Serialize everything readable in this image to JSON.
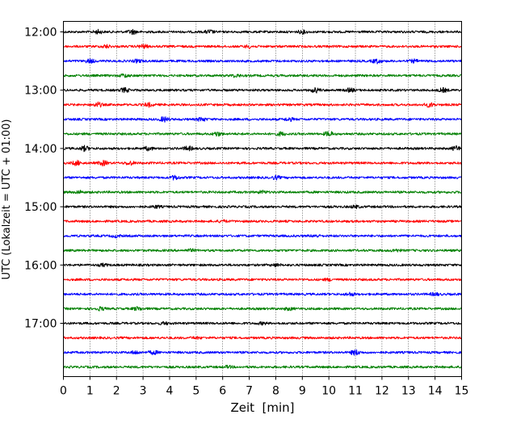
{
  "chart_data": {
    "type": "line",
    "xlabel": "Zeit  [min]",
    "ylabel": "UTC (Lokalzeit = UTC + 01:00)",
    "xlim": [
      0,
      15
    ],
    "x_ticks": [
      "0",
      "1",
      "2",
      "3",
      "4",
      "5",
      "6",
      "7",
      "8",
      "9",
      "10",
      "11",
      "12",
      "13",
      "14",
      "15"
    ],
    "y_ticks": [
      "12:00",
      "13:00",
      "14:00",
      "15:00",
      "16:00",
      "17:00"
    ],
    "grid": "vertical dotted at each minute",
    "trace_interval_minutes": 15,
    "traces": [
      {
        "start": "12:00",
        "color": "#000000",
        "events": [
          [
            1.3,
            2.0
          ],
          [
            2.6,
            2.6
          ],
          [
            5.5,
            2.0
          ],
          [
            9.0,
            1.8
          ]
        ]
      },
      {
        "start": "12:15",
        "color": "#ff0000",
        "events": [
          [
            1.6,
            1.8
          ],
          [
            3.0,
            2.2
          ],
          [
            7.0,
            1.6
          ]
        ]
      },
      {
        "start": "12:30",
        "color": "#0000ff",
        "events": [
          [
            1.0,
            2.2
          ],
          [
            2.8,
            1.8
          ],
          [
            11.8,
            2.4
          ],
          [
            13.2,
            1.6
          ]
        ]
      },
      {
        "start": "12:45",
        "color": "#008000",
        "events": [
          [
            2.3,
            1.8
          ],
          [
            6.5,
            1.6
          ]
        ]
      },
      {
        "start": "13:00",
        "color": "#000000",
        "events": [
          [
            2.3,
            2.5
          ],
          [
            9.5,
            2.6
          ],
          [
            10.8,
            2.0
          ],
          [
            14.3,
            2.2
          ]
        ]
      },
      {
        "start": "13:15",
        "color": "#ff0000",
        "events": [
          [
            1.3,
            2.6
          ],
          [
            3.2,
            2.2
          ],
          [
            13.8,
            2.4
          ]
        ]
      },
      {
        "start": "13:30",
        "color": "#0000ff",
        "events": [
          [
            3.8,
            2.8
          ],
          [
            5.2,
            2.2
          ],
          [
            8.5,
            1.8
          ]
        ]
      },
      {
        "start": "13:45",
        "color": "#008000",
        "events": [
          [
            5.8,
            2.4
          ],
          [
            8.2,
            2.0
          ],
          [
            10.0,
            2.8
          ]
        ]
      },
      {
        "start": "14:00",
        "color": "#000000",
        "events": [
          [
            0.8,
            2.8
          ],
          [
            3.2,
            2.0
          ],
          [
            4.7,
            2.4
          ],
          [
            14.8,
            2.6
          ]
        ]
      },
      {
        "start": "14:15",
        "color": "#ff0000",
        "events": [
          [
            0.5,
            2.6
          ],
          [
            1.5,
            2.8
          ],
          [
            2.5,
            2.2
          ]
        ]
      },
      {
        "start": "14:30",
        "color": "#0000ff",
        "events": [
          [
            4.2,
            2.4
          ],
          [
            8.0,
            1.8
          ]
        ]
      },
      {
        "start": "14:45",
        "color": "#008000",
        "events": [
          [
            0.6,
            1.6
          ],
          [
            7.5,
            1.4
          ]
        ]
      },
      {
        "start": "15:00",
        "color": "#000000",
        "events": [
          [
            3.5,
            1.4
          ],
          [
            11.0,
            1.4
          ]
        ]
      },
      {
        "start": "15:15",
        "color": "#ff0000",
        "events": [
          [
            6.0,
            1.2
          ]
        ]
      },
      {
        "start": "15:30",
        "color": "#0000ff",
        "events": [
          [
            2.0,
            1.4
          ],
          [
            9.5,
            1.3
          ]
        ]
      },
      {
        "start": "15:45",
        "color": "#008000",
        "events": [
          [
            4.8,
            1.3
          ],
          [
            12.5,
            1.4
          ]
        ]
      },
      {
        "start": "16:00",
        "color": "#000000",
        "events": [
          [
            1.5,
            1.3
          ],
          [
            8.0,
            1.4
          ]
        ]
      },
      {
        "start": "16:15",
        "color": "#ff0000",
        "events": [
          [
            10.0,
            1.2
          ]
        ]
      },
      {
        "start": "16:30",
        "color": "#0000ff",
        "events": [
          [
            10.8,
            1.8
          ],
          [
            14.0,
            1.6
          ]
        ]
      },
      {
        "start": "16:45",
        "color": "#008000",
        "events": [
          [
            1.4,
            1.8
          ],
          [
            2.8,
            2.0
          ],
          [
            8.5,
            1.5
          ]
        ]
      },
      {
        "start": "17:00",
        "color": "#000000",
        "events": [
          [
            3.8,
            1.4
          ],
          [
            7.5,
            1.2
          ]
        ]
      },
      {
        "start": "17:15",
        "color": "#ff0000",
        "events": [
          [
            5.0,
            1.0
          ]
        ]
      },
      {
        "start": "17:30",
        "color": "#0000ff",
        "events": [
          [
            2.7,
            1.8
          ],
          [
            3.4,
            2.0
          ],
          [
            11.0,
            3.0
          ]
        ]
      },
      {
        "start": "17:45",
        "color": "#008000",
        "events": [
          [
            6.2,
            1.2
          ]
        ]
      }
    ]
  }
}
